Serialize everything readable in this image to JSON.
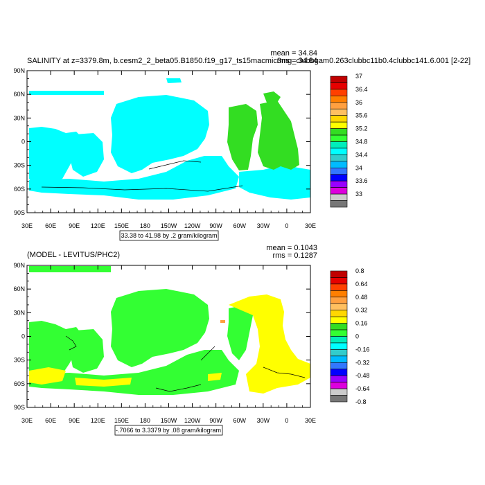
{
  "chart_data": [
    {
      "type": "heatmap",
      "title": "SALINITY at z=3379.8m, b.cesm2_2_beta05.B1850.f19_g17_ts15macmic3mg_clubbgam0.263clubbc11b0.4clubbc141.6.001 [2-22]",
      "stat_mean": "mean = 34.84",
      "stat_rms": "rms = 34.84",
      "contour_info": "33.38 to 41.98 by .2 gram/kilogram",
      "xticks": [
        "30E",
        "60E",
        "90E",
        "120E",
        "150E",
        "180",
        "150W",
        "120W",
        "90W",
        "60W",
        "30W",
        "0",
        "30E"
      ],
      "yticks": [
        "90N",
        "60N",
        "30N",
        "0",
        "30S",
        "60S",
        "90S"
      ],
      "colorbar": {
        "labels": [
          "37",
          "36.4",
          "36",
          "35.6",
          "35.2",
          "34.8",
          "34.4",
          "34",
          "33.6",
          "33"
        ],
        "colors": [
          "#c00000",
          "#e60000",
          "#ff4000",
          "#ff7f00",
          "#ffa040",
          "#ffc060",
          "#ffd700",
          "#ffff00",
          "#33dd22",
          "#33ff33",
          "#00eebb",
          "#00ffff",
          "#33cccc",
          "#00bbff",
          "#3377ff",
          "#0000ff",
          "#9900ff",
          "#dd00dd",
          "#cccccc",
          "#777777"
        ]
      }
    },
    {
      "type": "heatmap",
      "title": "(MODEL - LEVITUS/PHC2)",
      "stat_mean": "mean = 0.1043",
      "stat_rms": "rms = 0.1287",
      "contour_info": "-.7066 to 3.3379 by .08 gram/kilogram",
      "xticks": [
        "30E",
        "60E",
        "90E",
        "120E",
        "150E",
        "180",
        "150W",
        "120W",
        "90W",
        "60W",
        "30W",
        "0",
        "30E"
      ],
      "yticks": [
        "90N",
        "60N",
        "30N",
        "0",
        "30S",
        "60S",
        "90S"
      ],
      "colorbar": {
        "labels": [
          "0.8",
          "0.64",
          "0.48",
          "0.32",
          "0.16",
          "0",
          "-0.16",
          "-0.32",
          "-0.48",
          "-0.64",
          "-0.8"
        ],
        "colors": [
          "#c00000",
          "#e60000",
          "#ff4000",
          "#ff7f00",
          "#ffa040",
          "#ffc060",
          "#ffd700",
          "#ffff00",
          "#33dd22",
          "#33ff33",
          "#00eebb",
          "#00ffff",
          "#33cccc",
          "#00bbff",
          "#3377ff",
          "#0000ff",
          "#9900ff",
          "#dd00dd",
          "#cccccc",
          "#777777"
        ]
      }
    }
  ]
}
